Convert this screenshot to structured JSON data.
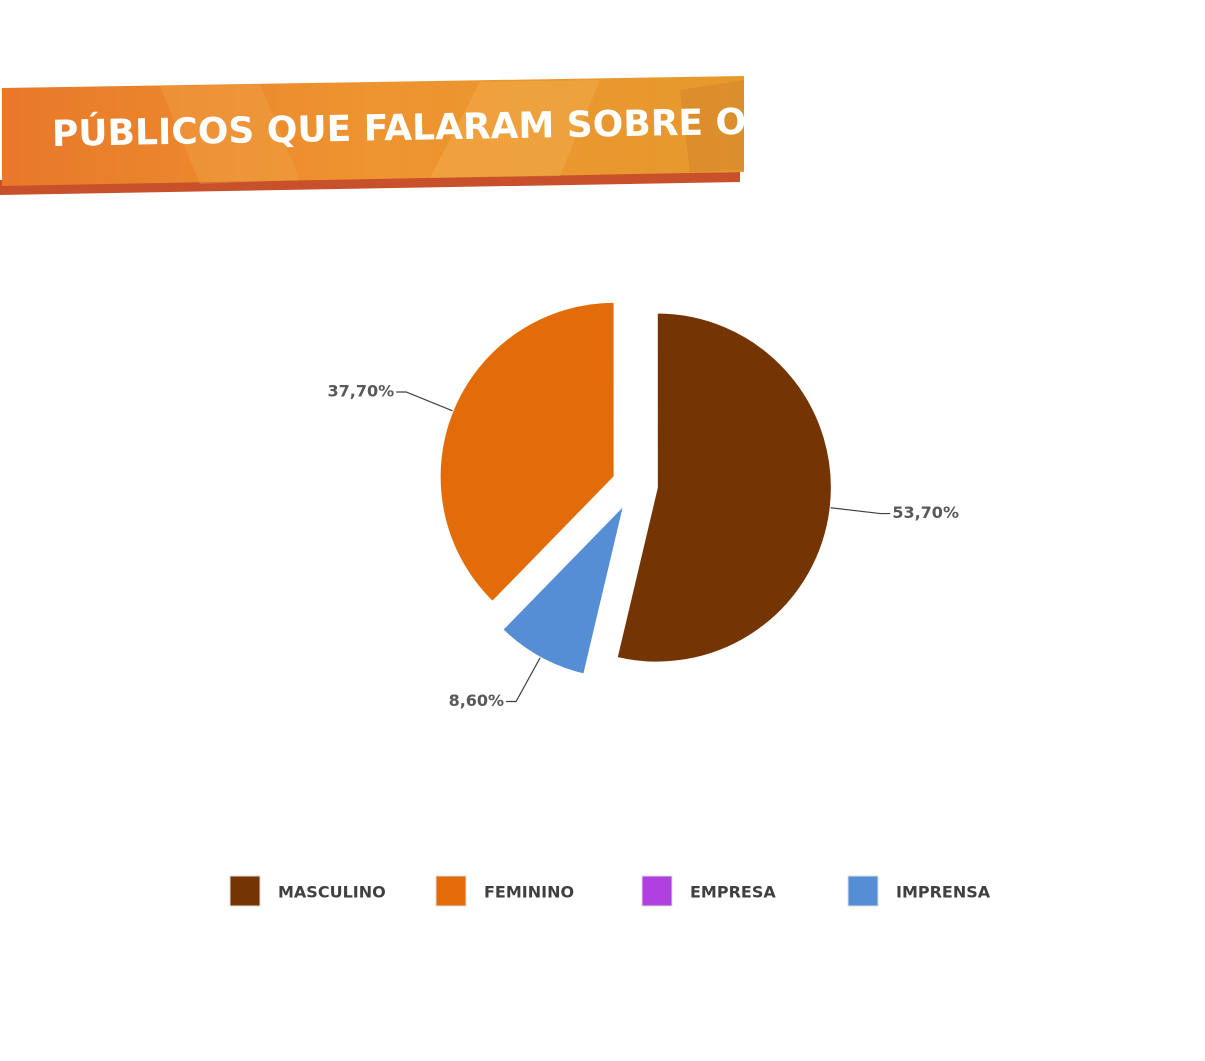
{
  "chart_data": {
    "type": "pie",
    "title": "PÚBLICOS QUE FALARAM SOBRE O TEMA",
    "categories": [
      "MASCULINO",
      "FEMININO",
      "EMPRESA",
      "IMPRENSA"
    ],
    "values": [
      53.7,
      37.7,
      0,
      8.6
    ],
    "value_labels": [
      "53,70%",
      "37,70%",
      null,
      "8,60%"
    ],
    "colors": [
      "#753403",
      "#e36c0a",
      "#b040e0",
      "#558ed5"
    ],
    "legend": "bottom"
  }
}
